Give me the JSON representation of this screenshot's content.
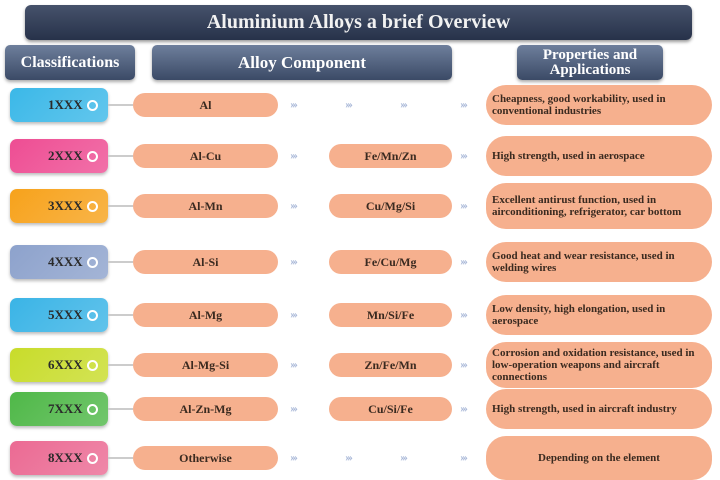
{
  "title": "Aluminium Alloys a brief Overview",
  "headers": {
    "classifications": "Classifications",
    "alloy_component": "Alloy Component",
    "properties": "Properties and Applications"
  },
  "arrow_glyph": "›››",
  "rows": [
    {
      "series": "1XXX",
      "color": "#3bb8e8",
      "alloy": "Al",
      "secondary": "",
      "properties": "Cheapness, good workability, used in conventional industries"
    },
    {
      "series": "2XXX",
      "color": "#ee4d93",
      "alloy": "Al-Cu",
      "secondary": "Fe/Mn/Zn",
      "properties": "High strength, used in aerospace"
    },
    {
      "series": "3XXX",
      "color": "#f7a21b",
      "alloy": "Al-Mn",
      "secondary": "Cu/Mg/Si",
      "properties": "Excellent antirust function, used in airconditioning, refrigerator, car bottom"
    },
    {
      "series": "4XXX",
      "color": "#8da2cc",
      "alloy": "Al-Si",
      "secondary": "Fe/Cu/Mg",
      "properties": "Good heat and wear resistance, used in welding wires"
    },
    {
      "series": "5XXX",
      "color": "#3ab4e6",
      "alloy": "Al-Mg",
      "secondary": "Mn/Si/Fe",
      "properties": "Low density, high elongation, used in aerospace"
    },
    {
      "series": "6XXX",
      "color": "#c8dc2a",
      "alloy": "Al-Mg-Si",
      "secondary": "Zn/Fe/Mn",
      "properties": "Corrosion and oxidation resistance, used in low-operation weapons and aircraft connections"
    },
    {
      "series": "7XXX",
      "color": "#4fb848",
      "alloy": "Al-Zn-Mg",
      "secondary": "Cu/Si/Fe",
      "properties": "High strength, used in aircraft industry"
    },
    {
      "series": "8XXX",
      "color": "#eb6a93",
      "alloy": "Otherwise",
      "secondary": "",
      "properties": "Depending on the element"
    }
  ]
}
